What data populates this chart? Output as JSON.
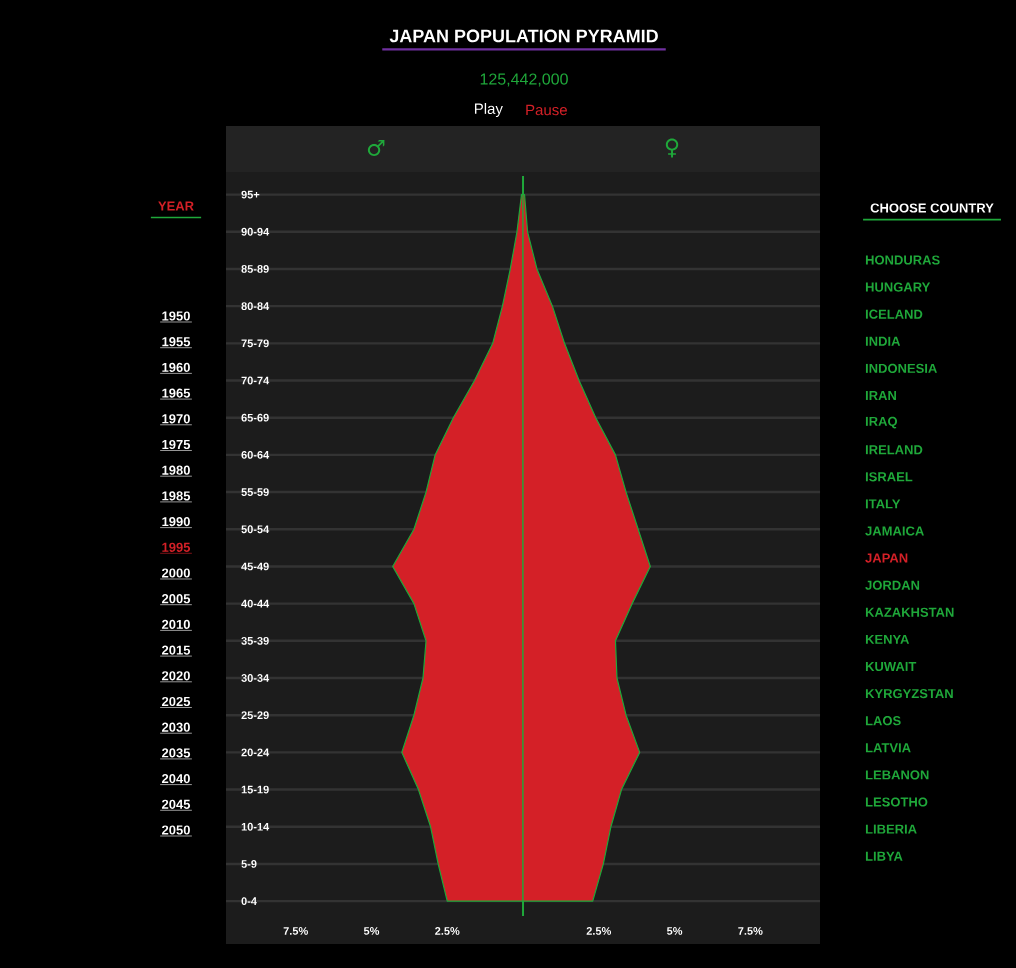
{
  "chart_data": {
    "type": "area",
    "orientation": "horizontal",
    "title": "JAPAN POPULATION PYRAMID",
    "subtitle": "125,442,000",
    "categories": [
      "95+",
      "90-94",
      "85-89",
      "80-84",
      "75-79",
      "70-74",
      "65-69",
      "60-64",
      "55-59",
      "50-54",
      "45-49",
      "40-44",
      "35-39",
      "30-34",
      "25-29",
      "20-24",
      "15-19",
      "10-14",
      "5-9",
      "0-4"
    ],
    "series": [
      {
        "color": "#d42027",
        "values": [
          -0.05,
          -0.2,
          -0.42,
          -0.68,
          -1.0,
          -1.6,
          -2.3,
          -2.9,
          -3.2,
          -3.6,
          -4.3,
          -3.6,
          -3.2,
          -3.3,
          -3.6,
          -4.0,
          -3.45,
          -3.05,
          -2.8,
          -2.5
        ]
      },
      {
        "color": "#d42027",
        "values": [
          0.05,
          0.15,
          0.46,
          0.97,
          1.37,
          1.85,
          2.4,
          3.05,
          3.4,
          3.8,
          4.2,
          3.6,
          3.05,
          3.1,
          3.4,
          3.85,
          3.25,
          2.9,
          2.65,
          2.3
        ]
      }
    ],
    "xlim": [
      -9.8,
      9.8
    ],
    "xticks": [
      {
        "value": -7.5,
        "label": "7.5%"
      },
      {
        "value": -5,
        "label": "5%"
      },
      {
        "value": -2.5,
        "label": "2.5%"
      },
      {
        "value": 2.5,
        "label": "2.5%"
      },
      {
        "value": 5,
        "label": "5%"
      },
      {
        "value": 7.5,
        "label": "7.5%"
      }
    ],
    "grid": "y",
    "ref_lines": [
      {
        "axis": "x",
        "value": 0,
        "color": "#1fa83a"
      }
    ],
    "annotations": [
      "Play",
      "Pause",
      "YEAR",
      "1950",
      "1955",
      "1960",
      "1965",
      "1970",
      "1975",
      "1980",
      "1985",
      "1990",
      "1995",
      "2000",
      "2005",
      "2010",
      "2015",
      "2020",
      "2025",
      "2030",
      "2035",
      "2040",
      "2045",
      "2050",
      "CHOOSE COUNTRY",
      "HONDURAS",
      "HUNGARY",
      "ICELAND",
      "INDIA",
      "INDONESIA",
      "IRAN",
      "IRAQ",
      "IRELAND",
      "ISRAEL",
      "ITALY",
      "JAMAICA",
      "JAPAN",
      "JORDAN",
      "KAZAKHSTAN",
      "KENYA",
      "KUWAIT",
      "KYRGYZSTAN",
      "LAOS",
      "LATVIA",
      "LEBANON",
      "LESOTHO",
      "LIBERIA",
      "LIBYA",
      "♂",
      "♀"
    ]
  }
}
